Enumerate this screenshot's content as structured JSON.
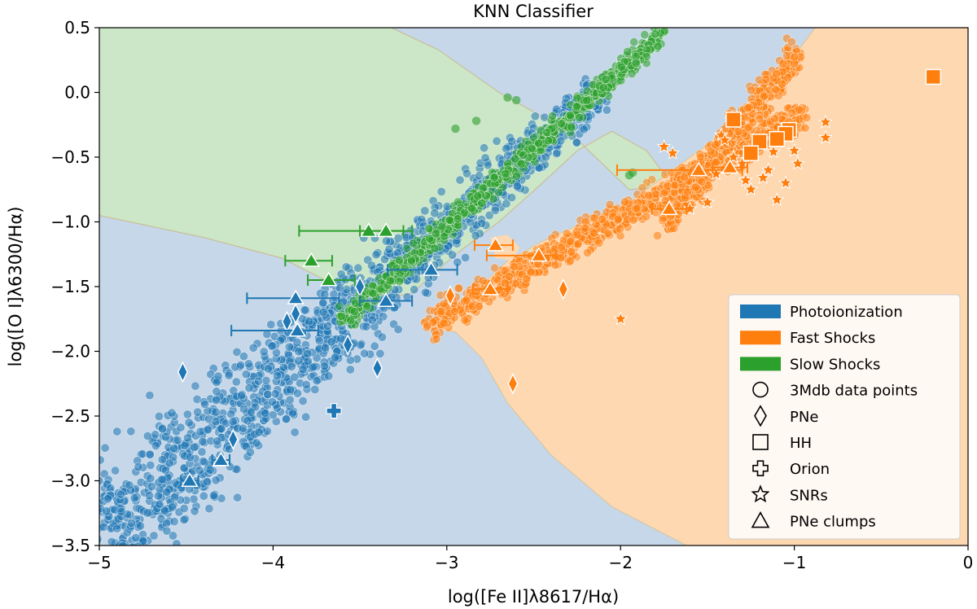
{
  "chart_data": {
    "type": "scatter",
    "title": "KNN Classifier",
    "xlabel": "log([Fe II]λ8617/Hα)",
    "ylabel": "log([O I]λ6300/Hα)",
    "xlim": [
      -5,
      0
    ],
    "ylim": [
      -3.5,
      0.5
    ],
    "xticks": [
      -5,
      -4,
      -3,
      -2,
      -1,
      0
    ],
    "xtick_labels": [
      "−5",
      "−4",
      "−3",
      "−2",
      "−1",
      "0"
    ],
    "yticks": [
      0.5,
      0.0,
      -0.5,
      -1.0,
      -1.5,
      -2.0,
      -2.5,
      -3.0,
      -3.5
    ],
    "ytick_labels": [
      "0.5",
      "0.0",
      "−0.5",
      "−1.0",
      "−1.5",
      "−2.0",
      "−2.5",
      "−3.0",
      "−3.5"
    ],
    "grid": false,
    "legend_position": "bottom-right",
    "colors": {
      "photoionization": "#1f77b4",
      "fast_shocks": "#ff7f0e",
      "slow_shocks": "#2ca02c",
      "region_photoionization": "#c5d7e8",
      "region_fast_shocks": "#fed8b1",
      "region_slow_shocks": "#cce6c8"
    },
    "legend": [
      {
        "label": "Photoionization",
        "marker": "patch",
        "color": "#1f77b4"
      },
      {
        "label": "Fast Shocks",
        "marker": "patch",
        "color": "#ff7f0e"
      },
      {
        "label": "Slow Shocks",
        "marker": "patch",
        "color": "#2ca02c"
      },
      {
        "label": "3Mdb data points",
        "marker": "circle"
      },
      {
        "label": "PNe",
        "marker": "diamond"
      },
      {
        "label": "HH",
        "marker": "square"
      },
      {
        "label": "Orion",
        "marker": "plus"
      },
      {
        "label": "SNRs",
        "marker": "star"
      },
      {
        "label": "PNe clumps",
        "marker": "triangle"
      }
    ],
    "regions": {
      "slow_shocks": [
        [
          -5,
          0.5
        ],
        [
          -3.3,
          0.5
        ],
        [
          -3.05,
          0.35
        ],
        [
          -2.7,
          0.0
        ],
        [
          -2.3,
          -0.3
        ],
        [
          -1.95,
          -0.5
        ],
        [
          -2.0,
          -0.75
        ],
        [
          -1.85,
          -0.75
        ],
        [
          -1.75,
          -0.6
        ],
        [
          -1.5,
          -0.4
        ],
        [
          -1.1,
          -0.2
        ],
        [
          -0.85,
          0.15
        ],
        [
          -0.7,
          0.5
        ],
        [
          0,
          0.5
        ],
        [
          0,
          0.5
        ],
        [
          -0.7,
          0.5
        ],
        [
          -0.85,
          0.15
        ],
        [
          -1.1,
          -0.2
        ],
        [
          -1.5,
          -0.4
        ],
        [
          -1.75,
          -0.6
        ],
        [
          -1.85,
          -0.75
        ],
        [
          -2.0,
          -0.75
        ],
        [
          -1.95,
          -0.5
        ],
        [
          -2.3,
          -0.3
        ],
        [
          -2.7,
          0.0
        ],
        [
          -3.05,
          0.35
        ],
        [
          -3.3,
          0.5
        ]
      ],
      "slow_shocks_main": [
        [
          -5,
          0.5
        ],
        [
          -3.32,
          0.5
        ],
        [
          -3.05,
          0.33
        ],
        [
          -2.65,
          0.0
        ],
        [
          -2.3,
          -0.28
        ],
        [
          -1.95,
          -0.5
        ],
        [
          -2.0,
          -0.75
        ],
        [
          -1.85,
          -0.77
        ],
        [
          -1.75,
          -0.6
        ],
        [
          -1.45,
          -0.38
        ],
        [
          -1.15,
          -0.15
        ],
        [
          -0.98,
          0.2
        ],
        [
          -0.88,
          0.5
        ],
        [
          -5,
          0.5
        ]
      ],
      "slow_shocks_lower": [
        [
          -5,
          -0.95
        ],
        [
          -4.4,
          -1.12
        ],
        [
          -3.95,
          -1.28
        ],
        [
          -3.7,
          -1.45
        ],
        [
          -3.45,
          -1.62
        ],
        [
          -3.2,
          -1.55
        ],
        [
          -2.95,
          -1.25
        ],
        [
          -2.7,
          -1.0
        ],
        [
          -2.45,
          -0.7
        ],
        [
          -2.25,
          -0.45
        ],
        [
          -2.05,
          -0.3
        ],
        [
          -1.85,
          -0.45
        ],
        [
          -1.7,
          -0.72
        ],
        [
          -1.95,
          -0.75
        ],
        [
          -2.3,
          -0.3
        ],
        [
          -2.7,
          0.0
        ],
        [
          -3.05,
          0.33
        ],
        [
          -3.32,
          0.5
        ],
        [
          -5,
          0.5
        ]
      ],
      "fast_shocks": [
        [
          -0.88,
          0.5
        ],
        [
          0,
          0.5
        ],
        [
          0,
          -3.5
        ],
        [
          -1.62,
          -3.5
        ],
        [
          -2.05,
          -3.2
        ],
        [
          -2.4,
          -2.8
        ],
        [
          -2.65,
          -2.4
        ],
        [
          -2.8,
          -2.05
        ],
        [
          -2.95,
          -1.85
        ],
        [
          -3.1,
          -1.82
        ],
        [
          -3.0,
          -1.72
        ],
        [
          -2.85,
          -1.55
        ],
        [
          -2.65,
          -1.3
        ],
        [
          -2.45,
          -1.15
        ],
        [
          -2.2,
          -1.0
        ],
        [
          -1.95,
          -0.85
        ],
        [
          -1.75,
          -0.65
        ],
        [
          -1.55,
          -0.45
        ],
        [
          -1.3,
          -0.22
        ],
        [
          -1.1,
          0.1
        ]
      ],
      "fast_shocks_blob": [
        [
          -2.75,
          -1.12
        ],
        [
          -2.72,
          -1.28
        ],
        [
          -2.62,
          -1.3
        ],
        [
          -2.58,
          -1.2
        ],
        [
          -2.65,
          -1.1
        ]
      ],
      "slow_shocks_blob": [
        [
          -2.55,
          -1.22
        ],
        [
          -2.5,
          -1.3
        ],
        [
          -2.42,
          -1.28
        ],
        [
          -2.45,
          -1.2
        ]
      ]
    },
    "slow_shock_points": [],
    "pne": [
      {
        "x": -4.52,
        "y": -2.16,
        "cls": "photoionization"
      },
      {
        "x": -3.92,
        "y": -1.77,
        "cls": "photoionization"
      },
      {
        "x": -3.87,
        "y": -1.71,
        "cls": "photoionization"
      },
      {
        "x": -3.5,
        "y": -1.5,
        "cls": "photoionization"
      },
      {
        "x": -3.57,
        "y": -1.95,
        "cls": "photoionization"
      },
      {
        "x": -3.4,
        "y": -2.13,
        "cls": "photoionization"
      },
      {
        "x": -4.23,
        "y": -2.68,
        "cls": "photoionization"
      },
      {
        "x": -2.98,
        "y": -1.57,
        "cls": "fast_shocks"
      },
      {
        "x": -2.33,
        "y": -1.52,
        "cls": "fast_shocks"
      },
      {
        "x": -2.62,
        "y": -2.25,
        "cls": "fast_shocks"
      }
    ],
    "hh": [
      {
        "x": -0.2,
        "y": 0.12
      },
      {
        "x": -1.35,
        "y": -0.21
      },
      {
        "x": -1.03,
        "y": -0.29
      },
      {
        "x": -1.05,
        "y": -0.32
      },
      {
        "x": -1.2,
        "y": -0.38
      },
      {
        "x": -1.1,
        "y": -0.36
      },
      {
        "x": -1.25,
        "y": -0.47
      }
    ],
    "orion": [
      {
        "x": -3.65,
        "y": -2.46
      }
    ],
    "snrs": [
      {
        "x": -0.82,
        "y": -0.23
      },
      {
        "x": -0.82,
        "y": -0.35
      },
      {
        "x": -1.0,
        "y": -0.45
      },
      {
        "x": -1.42,
        "y": -0.33
      },
      {
        "x": -1.4,
        "y": -0.37
      },
      {
        "x": -1.7,
        "y": -0.47
      },
      {
        "x": -1.75,
        "y": -0.42
      },
      {
        "x": -1.3,
        "y": -0.55
      },
      {
        "x": -1.15,
        "y": -0.6
      },
      {
        "x": -1.05,
        "y": -0.7
      },
      {
        "x": -1.25,
        "y": -0.75
      },
      {
        "x": -1.1,
        "y": -0.83
      },
      {
        "x": -1.45,
        "y": -0.63
      },
      {
        "x": -1.28,
        "y": -0.68
      },
      {
        "x": -1.5,
        "y": -0.85
      },
      {
        "x": -1.6,
        "y": -0.9
      },
      {
        "x": -2.0,
        "y": -1.75
      },
      {
        "x": -1.12,
        "y": -0.46
      },
      {
        "x": -0.98,
        "y": -0.55
      },
      {
        "x": -1.35,
        "y": -0.5
      },
      {
        "x": -1.18,
        "y": -0.66
      }
    ],
    "pne_clumps": [
      {
        "x": -3.45,
        "y": -1.07,
        "xerr": [
          0.4,
          0.2
        ],
        "cls": "slow_shocks"
      },
      {
        "x": -3.35,
        "y": -1.07,
        "xerr": [
          0.15,
          0.15
        ],
        "cls": "slow_shocks"
      },
      {
        "x": -3.78,
        "y": -1.3,
        "xerr": [
          0.15,
          0.12
        ],
        "cls": "slow_shocks"
      },
      {
        "x": -3.68,
        "y": -1.45,
        "xerr": [
          0.12,
          0.15
        ],
        "cls": "slow_shocks"
      },
      {
        "x": -3.09,
        "y": -1.37,
        "xerr": [
          0.25,
          0.15
        ],
        "cls": "photoionization"
      },
      {
        "x": -3.87,
        "y": -1.59,
        "xerr": [
          0.28,
          0.25
        ],
        "cls": "photoionization"
      },
      {
        "x": -3.35,
        "y": -1.61,
        "xerr": [
          0.15,
          0.15
        ],
        "cls": "photoionization"
      },
      {
        "x": -3.86,
        "y": -1.84,
        "xerr": [
          0.38,
          0.12
        ],
        "cls": "photoionization"
      },
      {
        "x": -4.3,
        "y": -2.84,
        "xerr": [
          0.05,
          0.05
        ],
        "cls": "photoionization"
      },
      {
        "x": -4.48,
        "y": -3.0,
        "xerr": [
          0.05,
          0.05
        ],
        "cls": "photoionization"
      },
      {
        "x": -2.72,
        "y": -1.18,
        "xerr": [
          0.12,
          0.1
        ],
        "cls": "fast_shocks"
      },
      {
        "x": -2.47,
        "y": -1.26,
        "xerr": [
          0.3,
          0.1
        ],
        "cls": "fast_shocks"
      },
      {
        "x": -2.75,
        "y": -1.52,
        "xerr": [
          0.1,
          0.1
        ],
        "cls": "fast_shocks"
      },
      {
        "x": -1.55,
        "y": -0.6,
        "xerr": [
          0.47,
          0.25
        ],
        "cls": "fast_shocks"
      },
      {
        "x": -1.37,
        "y": -0.58,
        "xerr": [
          0.1,
          0.1
        ],
        "cls": "fast_shocks"
      },
      {
        "x": -1.72,
        "y": -0.9,
        "xerr": [
          0.1,
          0.1
        ],
        "cls": "fast_shocks"
      }
    ]
  }
}
